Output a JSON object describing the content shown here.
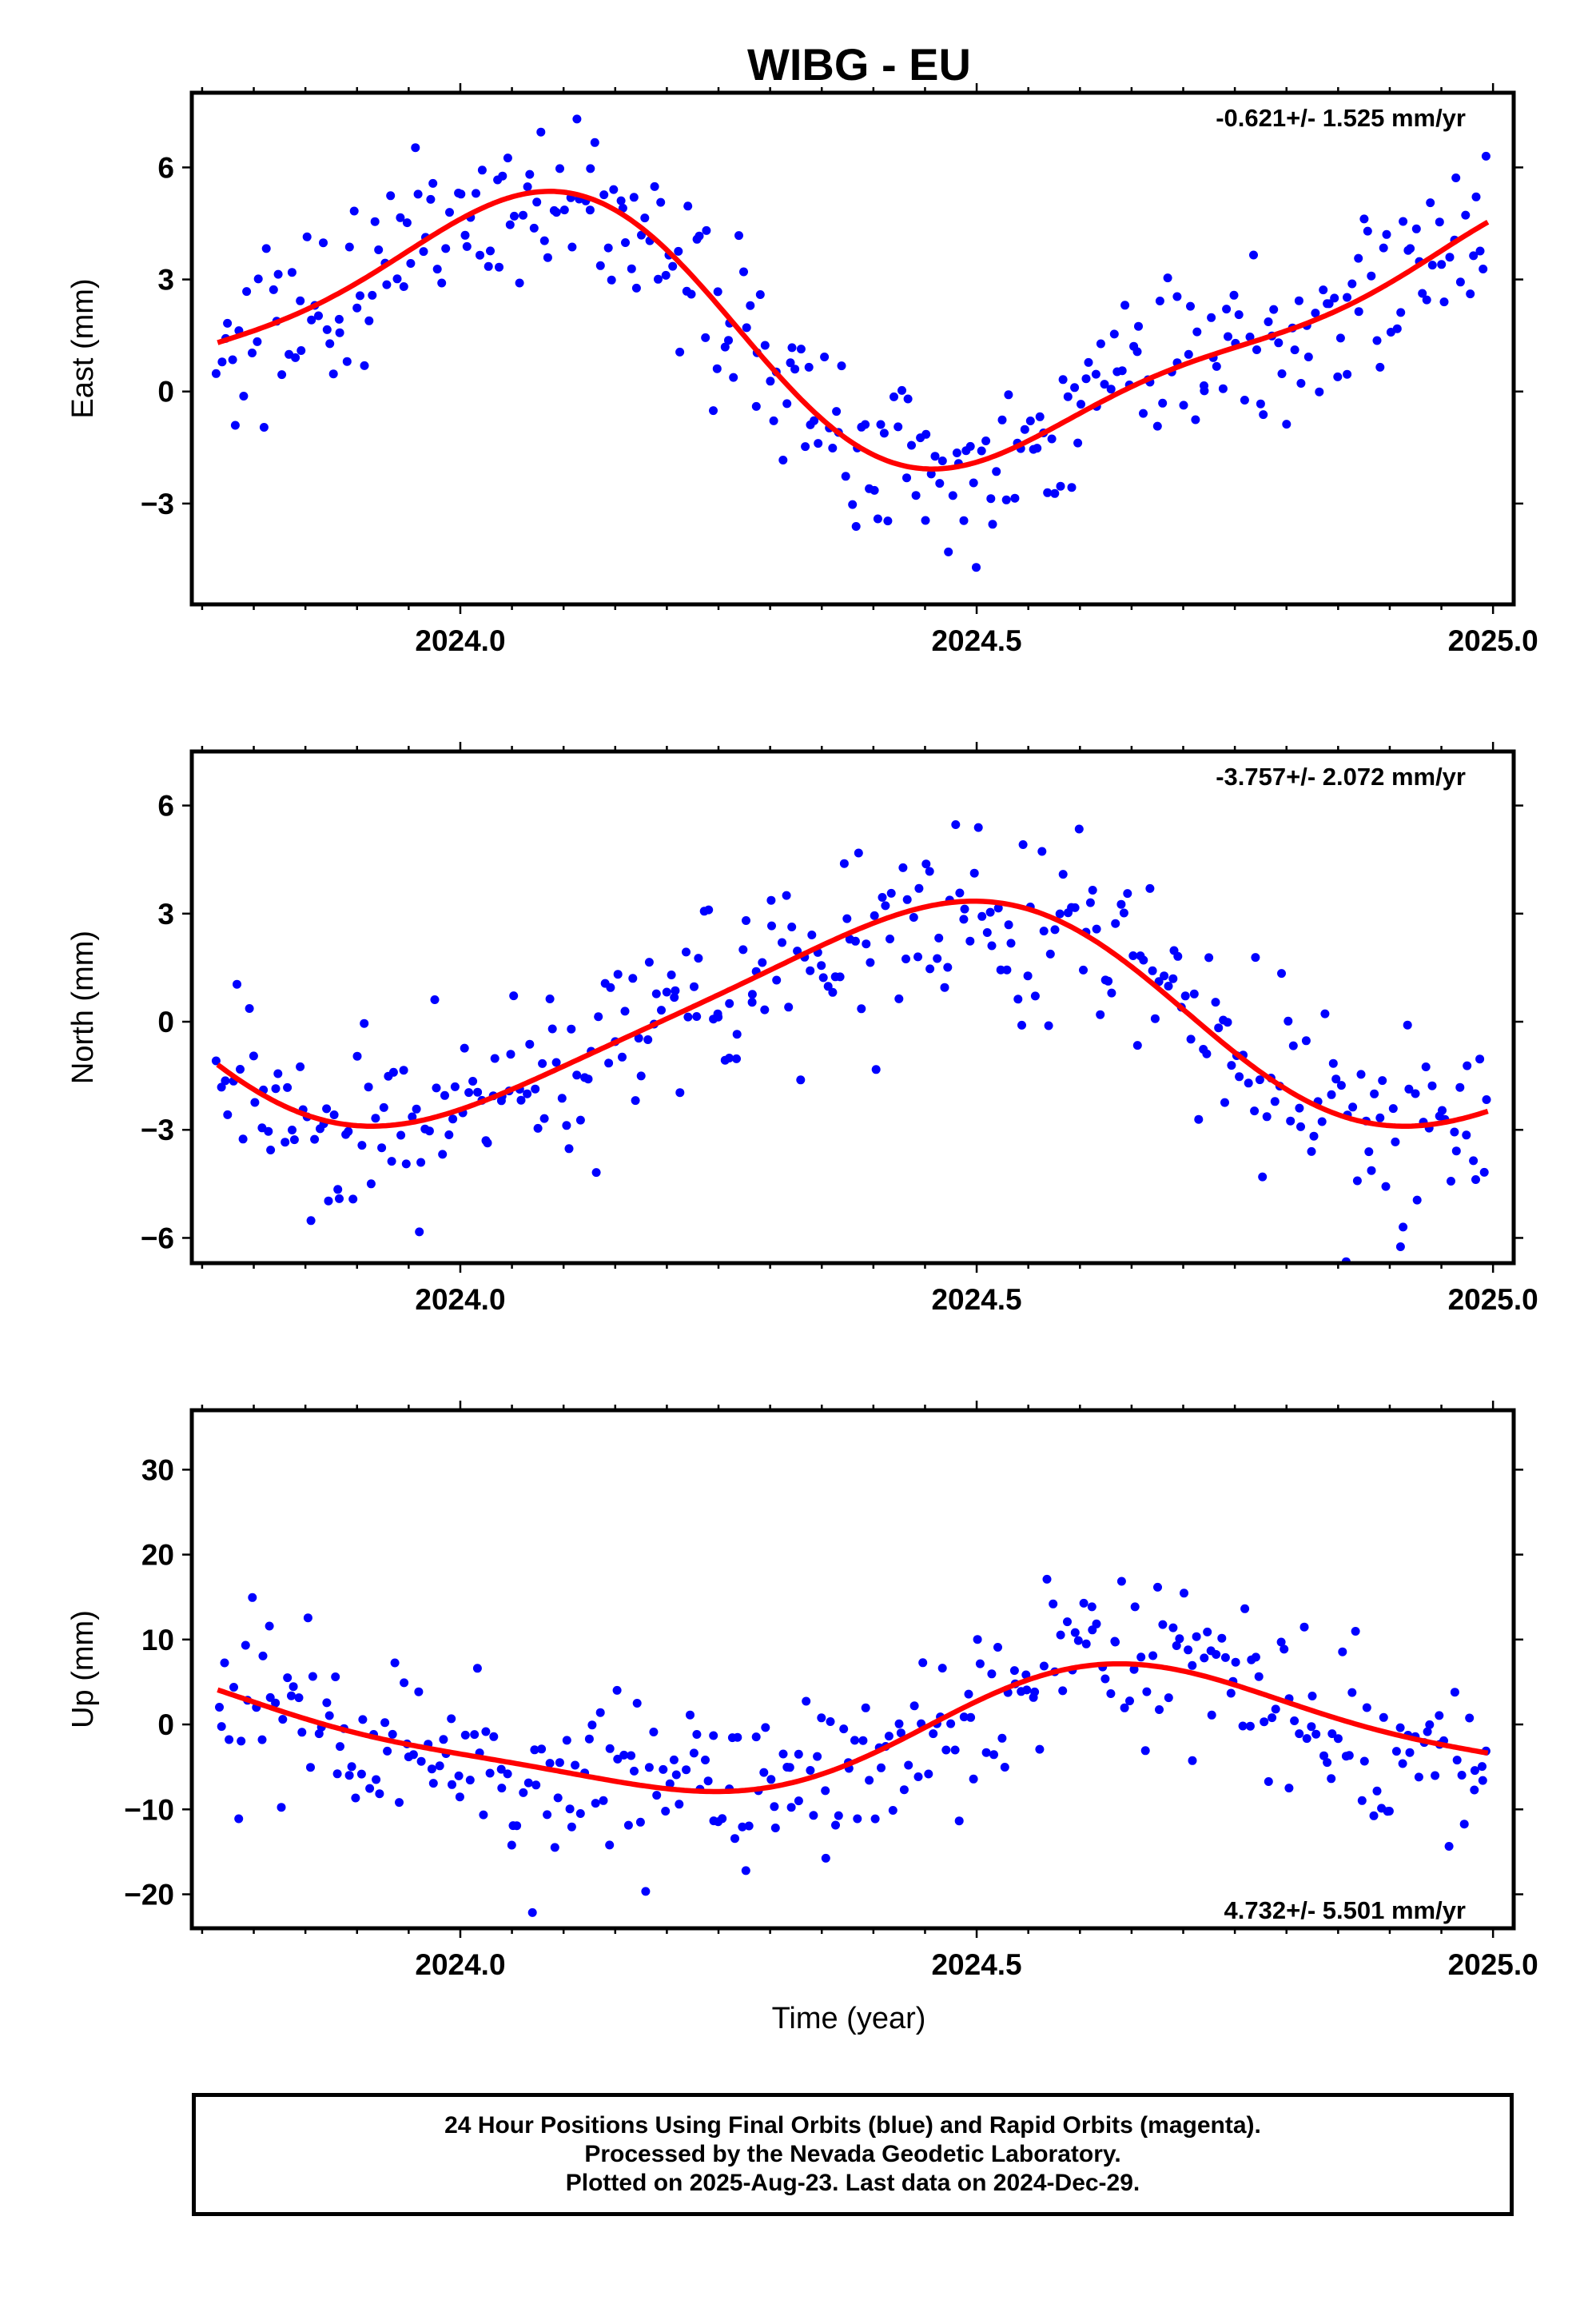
{
  "title": "WIBG - EU",
  "colors": {
    "points": "#0000ff",
    "fit": "#ff0000",
    "frame": "#000000"
  },
  "footer": {
    "line1": "24 Hour Positions Using Final Orbits (blue) and Rapid Orbits (magenta).",
    "line2": "Processed by the Nevada Geodetic Laboratory.",
    "line3": "Plotted on 2025-Aug-23. Last data on 2024-Dec-29."
  },
  "chart_data": [
    {
      "type": "scatter",
      "component": "east",
      "ylabel": "East (mm)",
      "xlabel": "",
      "xlim": [
        2023.74,
        2025.02
      ],
      "ylim": [
        -5.7,
        8.0
      ],
      "xticks": [
        2024.0,
        2024.5,
        2025.0
      ],
      "xtick_labels": [
        "2024.0",
        "2024.5",
        "2025.0"
      ],
      "yticks": [
        -3,
        0,
        3,
        6
      ],
      "ytick_labels": [
        "−3",
        "0",
        "3",
        "6"
      ],
      "rate": "-0.621+/- 1.525 mm/yr",
      "rate_position": "top-right",
      "fit": {
        "offset": 1.55,
        "amp1": 3.3,
        "phase1": 1.4,
        "amp2": 0.95,
        "phase2": -0.2
      },
      "seed": 101,
      "n_points": 330,
      "noise": 1.15
    },
    {
      "type": "scatter",
      "component": "north",
      "ylabel": "North (mm)",
      "xlabel": "",
      "xlim": [
        2023.74,
        2025.02
      ],
      "ylim": [
        -6.7,
        7.5
      ],
      "xticks": [
        2024.0,
        2024.5,
        2025.0
      ],
      "xtick_labels": [
        "2024.0",
        "2024.5",
        "2025.0"
      ],
      "yticks": [
        -6,
        -3,
        0,
        3,
        6
      ],
      "ytick_labels": [
        "−6",
        "−3",
        "0",
        "3",
        "6"
      ],
      "rate": "-3.757+/- 2.072 mm/yr",
      "rate_position": "top-right",
      "fit": {
        "offset": 0.2,
        "amp1": 3.0,
        "phase1": -1.3,
        "amp2": 0.45,
        "phase2": 0.6
      },
      "seed": 202,
      "n_points": 330,
      "noise": 1.35
    },
    {
      "type": "scatter",
      "component": "up",
      "ylabel": "Up (mm)",
      "xlabel": "Time (year)",
      "xlim": [
        2023.74,
        2025.02
      ],
      "ylim": [
        -24,
        37
      ],
      "xticks": [
        2024.0,
        2024.5,
        2025.0
      ],
      "xtick_labels": [
        "2024.0",
        "2024.5",
        "2025.0"
      ],
      "yticks": [
        -20,
        -10,
        0,
        10,
        20,
        30
      ],
      "ytick_labels": [
        "−20",
        "−10",
        "0",
        "10",
        "20",
        "30"
      ],
      "rate": "4.732+/- 5.501 mm/yr",
      "rate_position": "bottom-right",
      "fit": {
        "offset": -1.0,
        "amp1": 7.0,
        "phase1": 3.6,
        "amp2": 1.6,
        "phase2": 0.4
      },
      "seed": 303,
      "n_points": 330,
      "noise": 5.2
    }
  ]
}
